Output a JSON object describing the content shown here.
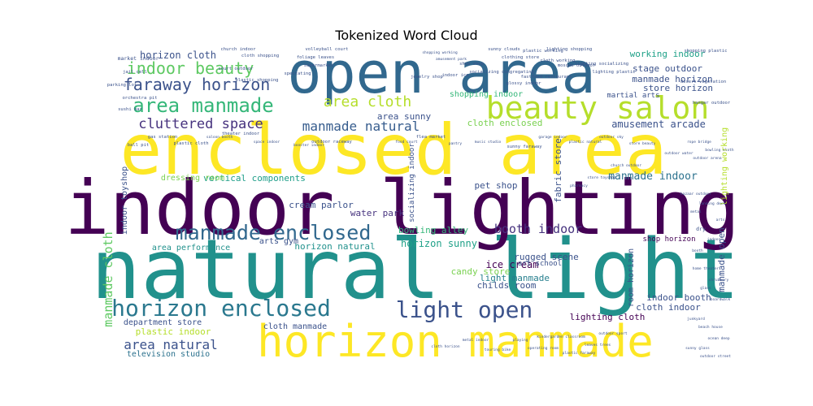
{
  "chart_data": {
    "type": "wordcloud",
    "title": "Tokenized Word Cloud",
    "background": "#ffffff",
    "colormap": "viridis",
    "words": [
      {
        "text": "natural light",
        "weight": 100,
        "color": "#21918c"
      },
      {
        "text": "indoor lighting",
        "weight": 90,
        "color": "#440154"
      },
      {
        "text": "enclosed area",
        "weight": 88,
        "color": "#fde725"
      },
      {
        "text": "open area",
        "weight": 70,
        "color": "#31688e"
      },
      {
        "text": "horizon manmade",
        "weight": 54,
        "color": "#fde725"
      },
      {
        "text": "beauty salon",
        "weight": 40,
        "color": "#b5de2b"
      },
      {
        "text": "horizon enclosed",
        "weight": 30,
        "color": "#2a788e"
      },
      {
        "text": "light open",
        "weight": 29,
        "color": "#3b528b"
      },
      {
        "text": "manmade enclosed",
        "weight": 26,
        "color": "#31688e"
      },
      {
        "text": "area manmade",
        "weight": 26,
        "color": "#35b779"
      },
      {
        "text": "faraway horizon",
        "weight": 22,
        "color": "#3b528b"
      },
      {
        "text": "indoor beauty",
        "weight": 22,
        "color": "#5ec962"
      },
      {
        "text": "area cloth",
        "weight": 19,
        "color": "#b5de2b"
      },
      {
        "text": "cluttered space",
        "weight": 18,
        "color": "#46327e"
      },
      {
        "text": "manmade natural",
        "weight": 17,
        "color": "#365c8d"
      },
      {
        "text": "area natural",
        "weight": 17,
        "color": "#3b528b"
      },
      {
        "text": "horizon cloth",
        "weight": 13,
        "color": "#3b528b"
      },
      {
        "text": "booth indoor",
        "weight": 14,
        "color": "#46327e"
      },
      {
        "text": "manmade cloth",
        "weight": 14,
        "color": "#5ec962"
      },
      {
        "text": "ice cream",
        "weight": 12,
        "color": "#440154"
      },
      {
        "text": "light manmade",
        "weight": 11,
        "color": "#277f8e"
      },
      {
        "text": "bowling alley",
        "weight": 11,
        "color": "#35b779"
      },
      {
        "text": "horizon sunny",
        "weight": 11,
        "color": "#1fa188"
      },
      {
        "text": "horizon natural",
        "weight": 10,
        "color": "#21918c"
      },
      {
        "text": "plastic indoor",
        "weight": 10,
        "color": "#b5de2b"
      },
      {
        "text": "department store",
        "weight": 10,
        "color": "#3b528b"
      },
      {
        "text": "cloth manmade",
        "weight": 10,
        "color": "#3b528b"
      },
      {
        "text": "area performance",
        "weight": 10,
        "color": "#21918c"
      },
      {
        "text": "arts gym",
        "weight": 10,
        "color": "#3b528b"
      },
      {
        "text": "vertical components",
        "weight": 10,
        "color": "#1f9e89"
      },
      {
        "text": "dressing room",
        "weight": 10,
        "color": "#7ad151"
      },
      {
        "text": "cream parlor",
        "weight": 10,
        "color": "#3b528b"
      },
      {
        "text": "water park",
        "weight": 10,
        "color": "#46327e"
      },
      {
        "text": "manmade indoor",
        "weight": 10,
        "color": "#2c728e"
      },
      {
        "text": "amusement arcade",
        "weight": 9,
        "color": "#3b528b"
      },
      {
        "text": "working indoor",
        "weight": 9,
        "color": "#1fa188"
      },
      {
        "text": "stage outdoor",
        "weight": 9,
        "color": "#3b528b"
      },
      {
        "text": "manmade horizon",
        "weight": 9,
        "color": "#3b528b"
      },
      {
        "text": "store horizon",
        "weight": 9,
        "color": "#3b528b"
      },
      {
        "text": "martial arts",
        "weight": 8,
        "color": "#3b528b"
      },
      {
        "text": "pet shop",
        "weight": 9,
        "color": "#3b528b"
      },
      {
        "text": "cloth enclosed",
        "weight": 9,
        "color": "#7ad151"
      },
      {
        "text": "area sunny",
        "weight": 9,
        "color": "#3b528b"
      },
      {
        "text": "cloth indoor",
        "weight": 9,
        "color": "#3b528b"
      },
      {
        "text": "indoor booth",
        "weight": 9,
        "color": "#3b528b"
      },
      {
        "text": "lighting cloth",
        "weight": 9,
        "color": "#440154"
      },
      {
        "text": "childs room",
        "weight": 9,
        "color": "#3b528b"
      },
      {
        "text": "candy store",
        "weight": 9,
        "color": "#7ad151"
      },
      {
        "text": "rugged scene",
        "weight": 9,
        "color": "#3b528b"
      },
      {
        "text": "television studio",
        "weight": 8,
        "color": "#2c728e"
      },
      {
        "text": "manmade open",
        "weight": 9,
        "color": "#3b528b"
      },
      {
        "text": "shop horizon",
        "weight": 7,
        "color": "#440154"
      },
      {
        "text": "art school",
        "weight": 7,
        "color": "#3b528b"
      },
      {
        "text": "fabric store",
        "weight": 8,
        "color": "#3b528b"
      },
      {
        "text": "room horizon",
        "weight": 8,
        "color": "#3b528b"
      },
      {
        "text": "lighting working",
        "weight": 8,
        "color": "#b5de2b"
      },
      {
        "text": "socializing indoor",
        "weight": 7,
        "color": "#3b528b"
      },
      {
        "text": "indoor toyshop",
        "weight": 8,
        "color": "#3b528b"
      },
      {
        "text": "shopping indoor",
        "weight": 7,
        "color": "#35b779"
      },
      {
        "text": "market indoor",
        "weight": 6,
        "color": "#3b528b"
      },
      {
        "text": "church indoor",
        "weight": 5,
        "color": "#3b528b"
      },
      {
        "text": "cloth shopping",
        "weight": 5,
        "color": "#3b528b"
      },
      {
        "text": "foliage leaves",
        "weight": 5,
        "color": "#3b528b"
      },
      {
        "text": "volleyball court",
        "weight": 5,
        "color": "#3b528b"
      },
      {
        "text": "shopping working",
        "weight": 4,
        "color": "#3b528b"
      },
      {
        "text": "amusement park",
        "weight": 4,
        "color": "#3b528b"
      },
      {
        "text": "shoe shop",
        "weight": 5,
        "color": "#3b528b"
      },
      {
        "text": "sunny clouds",
        "weight": 5,
        "color": "#3b528b"
      },
      {
        "text": "clothing store",
        "weight": 5,
        "color": "#3b528b"
      },
      {
        "text": "plastic working",
        "weight": 5,
        "color": "#3b528b"
      },
      {
        "text": "cloth working",
        "weight": 5,
        "color": "#3b528b"
      },
      {
        "text": "lighting shopping",
        "weight": 5,
        "color": "#3b528b"
      },
      {
        "text": "mosque outdoor",
        "weight": 5,
        "color": "#3b528b"
      },
      {
        "text": "shopping plastic",
        "weight": 5,
        "color": "#3b528b"
      },
      {
        "text": "desert vegetation",
        "weight": 5,
        "color": "#3b528b"
      },
      {
        "text": "hangar outdoor",
        "weight": 5,
        "color": "#3b528b"
      },
      {
        "text": "lighting socializing",
        "weight": 5,
        "color": "#3b528b"
      },
      {
        "text": "lighting plastic",
        "weight": 5,
        "color": "#3b528b"
      },
      {
        "text": "fastfood restaurant",
        "weight": 5,
        "color": "#3b528b"
      },
      {
        "text": "glossy indoor",
        "weight": 5,
        "color": "#3b528b"
      },
      {
        "text": "socializing congregating",
        "weight": 5,
        "color": "#3b528b"
      },
      {
        "text": "indoor ice",
        "weight": 5,
        "color": "#3b528b"
      },
      {
        "text": "jewelry shop",
        "weight": 5,
        "color": "#3b528b"
      },
      {
        "text": "supermarket",
        "weight": 5,
        "color": "#3b528b"
      },
      {
        "text": "spectating",
        "weight": 5,
        "color": "#3b528b"
      },
      {
        "text": "plastic shopping",
        "weight": 5,
        "color": "#3b528b"
      },
      {
        "text": "court outdoor",
        "weight": 5,
        "color": "#3b528b"
      },
      {
        "text": "jail cell",
        "weight": 5,
        "color": "#3b528b"
      },
      {
        "text": "parking lot",
        "weight": 5,
        "color": "#3b528b"
      },
      {
        "text": "orchestra pit",
        "weight": 5,
        "color": "#3b528b"
      },
      {
        "text": "sushi bar",
        "weight": 5,
        "color": "#3b528b"
      },
      {
        "text": "ball pit",
        "weight": 5,
        "color": "#3b528b"
      },
      {
        "text": "gas station",
        "weight": 5,
        "color": "#3b528b"
      },
      {
        "text": "plastic cloth",
        "weight": 5,
        "color": "#3b528b"
      },
      {
        "text": "saloon booth",
        "weight": 4,
        "color": "#3b528b"
      },
      {
        "text": "theater indoor",
        "weight": 5,
        "color": "#3b528b"
      },
      {
        "text": "space indoor",
        "weight": 4,
        "color": "#3b528b"
      },
      {
        "text": "booster indoor",
        "weight": 4,
        "color": "#3b528b"
      },
      {
        "text": "outdoor raceway",
        "weight": 5,
        "color": "#3b528b"
      },
      {
        "text": "food court",
        "weight": 4,
        "color": "#3b528b"
      },
      {
        "text": "flea market",
        "weight": 5,
        "color": "#3b528b"
      },
      {
        "text": "pantry",
        "weight": 4,
        "color": "#3b528b"
      },
      {
        "text": "music studio",
        "weight": 4,
        "color": "#3b528b"
      },
      {
        "text": "sunny faraway",
        "weight": 5,
        "color": "#3b528b"
      },
      {
        "text": "garage indoor",
        "weight": 4,
        "color": "#3b528b"
      },
      {
        "text": "plastic natural",
        "weight": 4,
        "color": "#3b528b"
      },
      {
        "text": "outdoor sky",
        "weight": 4,
        "color": "#3b528b"
      },
      {
        "text": "store beauty",
        "weight": 4,
        "color": "#3b528b"
      },
      {
        "text": "rope bridge",
        "weight": 4,
        "color": "#3b528b"
      },
      {
        "text": "bowling cloth",
        "weight": 4,
        "color": "#3b528b"
      },
      {
        "text": "outdoor arena",
        "weight": 4,
        "color": "#3b528b"
      },
      {
        "text": "outdoor water",
        "weight": 4,
        "color": "#3b528b"
      },
      {
        "text": "church outdoor",
        "weight": 4,
        "color": "#3b528b"
      },
      {
        "text": "store toyshop",
        "weight": 4,
        "color": "#3b528b"
      },
      {
        "text": "pharmacy",
        "weight": 4,
        "color": "#3b528b"
      },
      {
        "text": "bazaar outdoor",
        "weight": 4,
        "color": "#3b528b"
      },
      {
        "text": "landing deck",
        "weight": 4,
        "color": "#3b528b"
      },
      {
        "text": "metal",
        "weight": 4,
        "color": "#3b528b"
      },
      {
        "text": "arts",
        "weight": 4,
        "color": "#3b528b"
      },
      {
        "text": "dry",
        "weight": 6,
        "color": "#3b528b"
      },
      {
        "text": "indoor",
        "weight": 4,
        "color": "#3b528b"
      },
      {
        "text": "booth",
        "weight": 4,
        "color": "#3b528b"
      },
      {
        "text": "home theater",
        "weight": 4,
        "color": "#3b528b"
      },
      {
        "text": "shrubbery",
        "weight": 4,
        "color": "#3b528b"
      },
      {
        "text": "glass",
        "weight": 4,
        "color": "#3b528b"
      },
      {
        "text": "boardwalk",
        "weight": 4,
        "color": "#3b528b"
      },
      {
        "text": "junkyard",
        "weight": 4,
        "color": "#3b528b"
      },
      {
        "text": "beach house",
        "weight": 4,
        "color": "#3b528b"
      },
      {
        "text": "ocean deep",
        "weight": 4,
        "color": "#3b528b"
      },
      {
        "text": "sunny glass",
        "weight": 4,
        "color": "#3b528b"
      },
      {
        "text": "outdoor street",
        "weight": 4,
        "color": "#3b528b"
      },
      {
        "text": "outdoor sport",
        "weight": 4,
        "color": "#3b528b"
      },
      {
        "text": "leaves trees",
        "weight": 4,
        "color": "#3b528b"
      },
      {
        "text": "plastic faraway",
        "weight": 4,
        "color": "#3b528b"
      },
      {
        "text": "kindergarden classroom",
        "weight": 4,
        "color": "#3b528b"
      },
      {
        "text": "operating room",
        "weight": 4,
        "color": "#3b528b"
      },
      {
        "text": "playing",
        "weight": 4,
        "color": "#3b528b"
      },
      {
        "text": "touring bike",
        "weight": 4,
        "color": "#3b528b"
      },
      {
        "text": "metal indoor",
        "weight": 4,
        "color": "#3b528b"
      },
      {
        "text": "cloth horizon",
        "weight": 4,
        "color": "#3b528b"
      }
    ]
  }
}
